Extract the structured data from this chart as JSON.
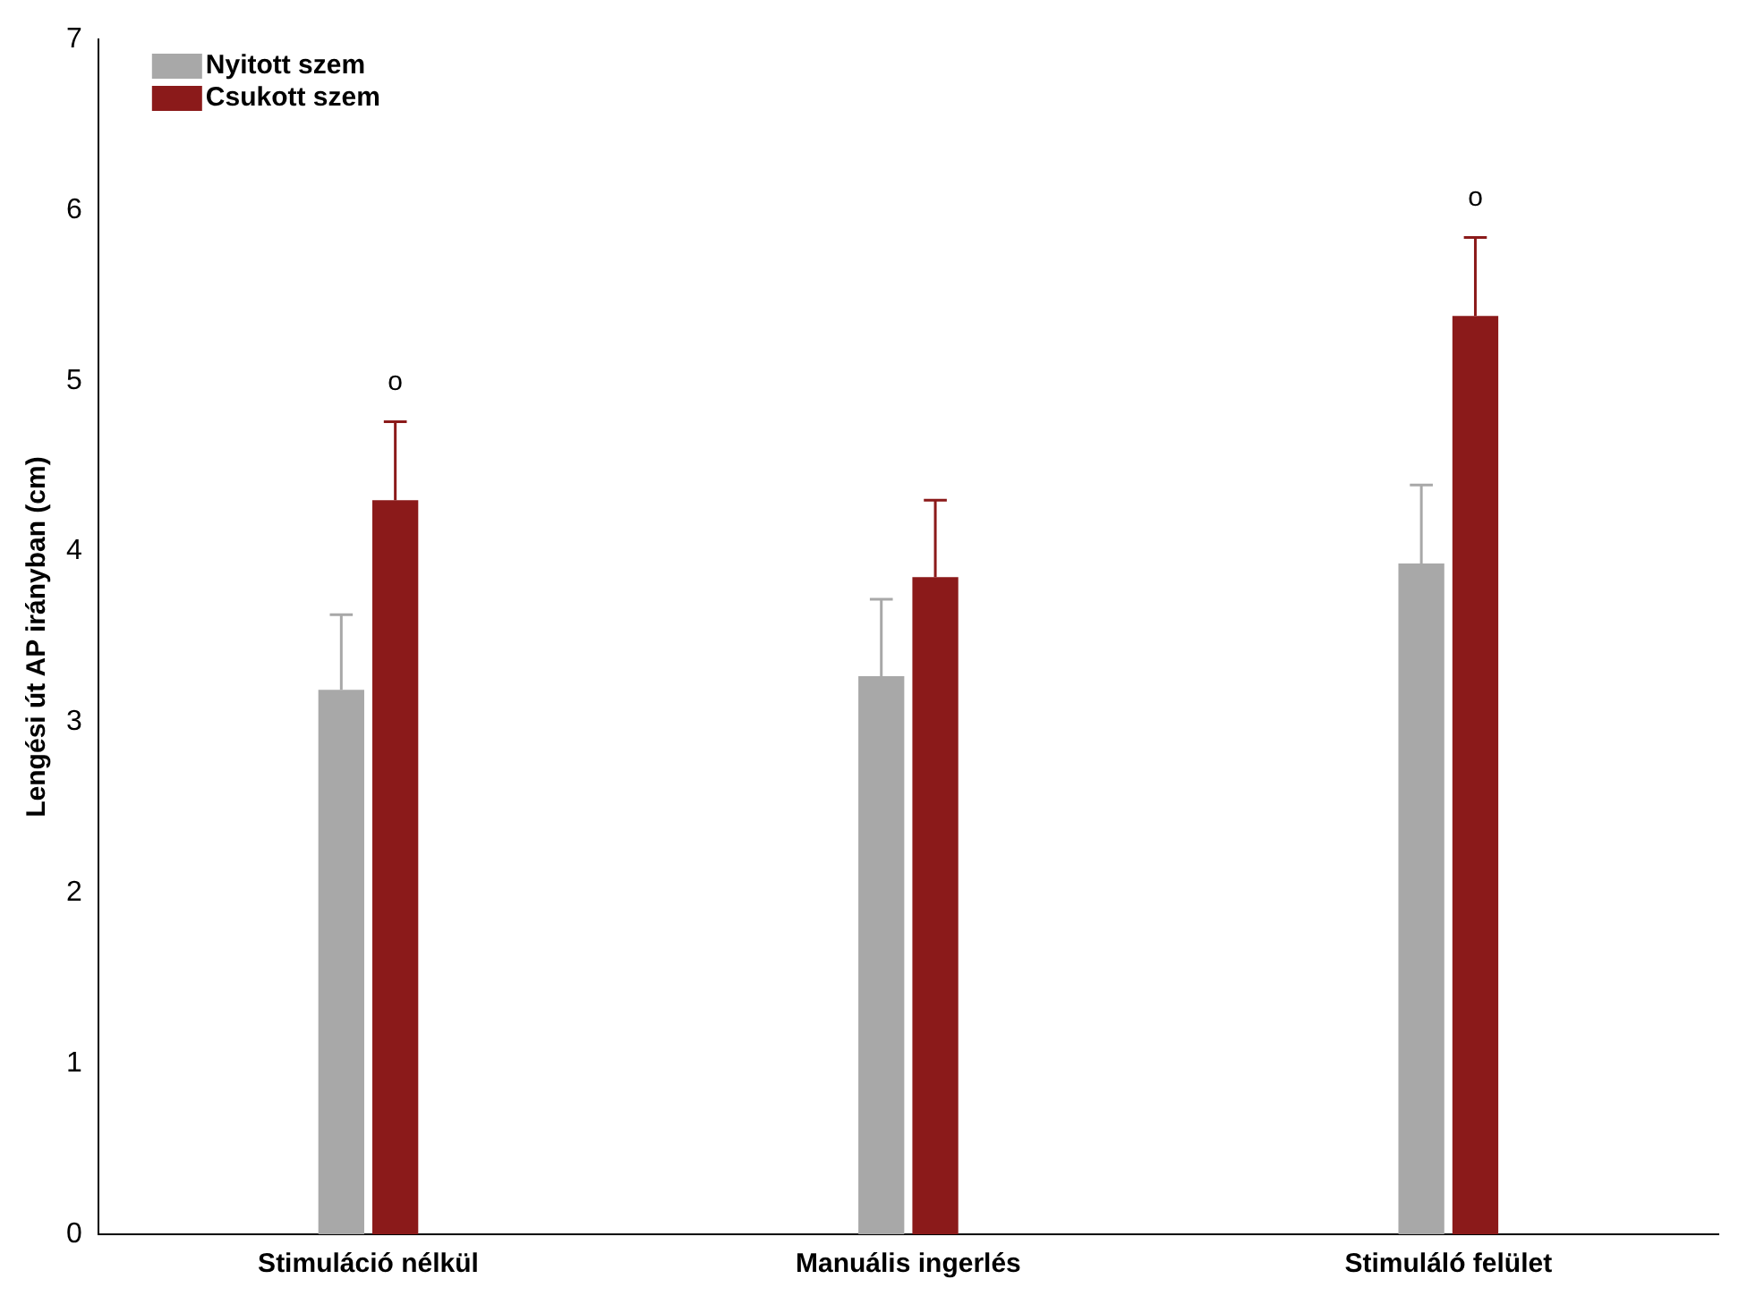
{
  "chart_data": {
    "type": "bar",
    "ylabel": "Lengési út AP irányban (cm)",
    "categories": [
      "Stimuláció nélkül",
      "Manuális ingerlés",
      "Stimuláló felület"
    ],
    "series": [
      {
        "name": "Nyitott szem",
        "color": "#a8a8a8",
        "values": [
          3.19,
          3.27,
          3.93
        ],
        "errors": [
          [
            3.19,
            3.63
          ],
          [
            3.27,
            3.72
          ],
          [
            3.93,
            4.39
          ]
        ]
      },
      {
        "name": "Csukott szem",
        "color": "#8b1a1a",
        "values": [
          4.3,
          3.85,
          5.38
        ],
        "errors": [
          [
            4.3,
            4.76
          ],
          [
            3.85,
            4.3
          ],
          [
            5.38,
            5.84
          ]
        ]
      }
    ],
    "ylim": [
      0,
      7
    ],
    "yticks": [
      0,
      1,
      2,
      3,
      4,
      5,
      6,
      7
    ],
    "grid": false,
    "legend": "top left",
    "annotations": [
      "o",
      "o"
    ]
  }
}
